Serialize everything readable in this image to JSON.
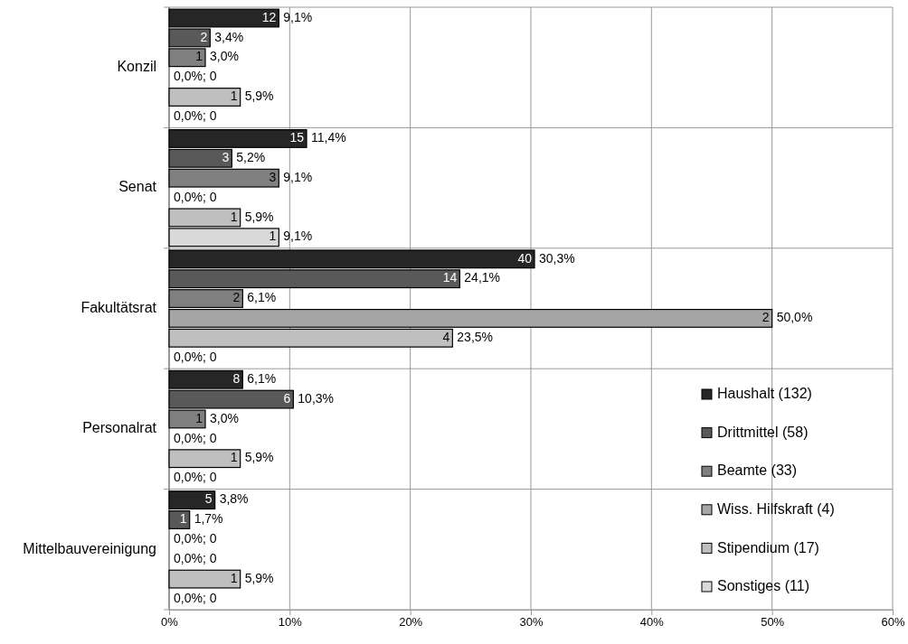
{
  "chart_data": {
    "type": "bar",
    "orientation": "horizontal",
    "categories": [
      "Konzil",
      "Senat",
      "Fakultätsrat",
      "Personalrat",
      "Mittelbauvereinigung"
    ],
    "series": [
      {
        "name": "Haushalt (132)",
        "color": "#262626",
        "values": [
          9.1,
          11.4,
          30.3,
          6.1,
          3.8
        ],
        "value_labels": [
          [
            "12",
            "9,1%"
          ],
          [
            "15",
            "11,4%"
          ],
          [
            "40",
            "30,3%"
          ],
          [
            "8",
            "6,1%"
          ],
          [
            "5",
            "3,8%"
          ]
        ]
      },
      {
        "name": "Drittmittel (58)",
        "color": "#595959",
        "values": [
          3.4,
          5.2,
          24.1,
          10.3,
          1.7
        ],
        "value_labels": [
          [
            "2",
            "3,4%"
          ],
          [
            "3",
            "5,2%"
          ],
          [
            "14",
            "24,1%"
          ],
          [
            "6",
            "10,3%"
          ],
          [
            "1",
            "1,7%"
          ]
        ]
      },
      {
        "name": "Beamte (33)",
        "color": "#808080",
        "values": [
          3.0,
          9.1,
          6.1,
          3.0,
          0
        ],
        "value_labels": [
          [
            "1",
            "3,0%"
          ],
          [
            "3",
            "9,1%"
          ],
          [
            "2",
            "6,1%"
          ],
          [
            "1",
            "3,0%"
          ],
          [
            null,
            "0,0%; 0"
          ]
        ]
      },
      {
        "name": "Wiss. Hilfskraft (4)",
        "color": "#a6a6a6",
        "values": [
          0,
          0,
          50.0,
          0,
          0
        ],
        "value_labels": [
          [
            null,
            "0,0%; 0"
          ],
          [
            null,
            "0,0%; 0"
          ],
          [
            "2",
            "50,0%"
          ],
          [
            null,
            "0,0%; 0"
          ],
          [
            null,
            "0,0%; 0"
          ]
        ]
      },
      {
        "name": "Stipendium (17)",
        "color": "#bfbfbf",
        "values": [
          5.9,
          5.9,
          23.5,
          5.9,
          5.9
        ],
        "value_labels": [
          [
            "1",
            "5,9%"
          ],
          [
            "1",
            "5,9%"
          ],
          [
            "4",
            "23,5%"
          ],
          [
            "1",
            "5,9%"
          ],
          [
            "1",
            "5,9%"
          ]
        ]
      },
      {
        "name": "Sonstiges (11)",
        "color": "#d9d9d9",
        "values": [
          0,
          9.1,
          0,
          0,
          0
        ],
        "value_labels": [
          [
            null,
            "0,0%; 0"
          ],
          [
            "1",
            "9,1%"
          ],
          [
            null,
            "0,0%; 0"
          ],
          [
            null,
            "0,0%; 0"
          ],
          [
            null,
            "0,0%; 0"
          ]
        ]
      }
    ],
    "xlim": [
      0,
      60
    ],
    "xticks": [
      {
        "value": 0,
        "label": "0%"
      },
      {
        "value": 10,
        "label": "10%"
      },
      {
        "value": 20,
        "label": "20%"
      },
      {
        "value": 30,
        "label": "30%"
      },
      {
        "value": 40,
        "label": "40%"
      },
      {
        "value": 50,
        "label": "50%"
      },
      {
        "value": 60,
        "label": "60%"
      }
    ],
    "grid": "x",
    "legend": "bottom right"
  }
}
